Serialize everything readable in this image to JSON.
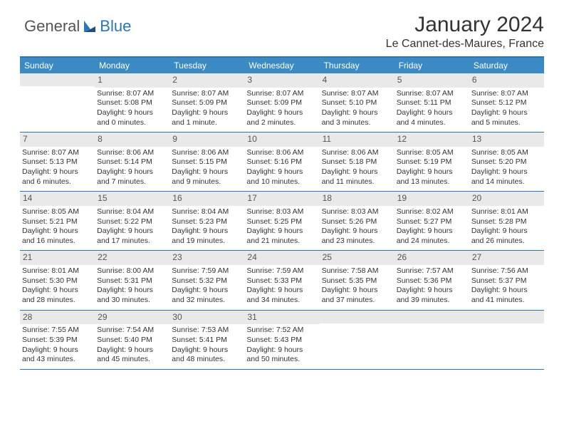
{
  "brand": {
    "part1": "General",
    "part2": "Blue"
  },
  "title": "January 2024",
  "location": "Le Cannet-des-Maures, France",
  "colors": {
    "header_bg": "#3b8ac4",
    "header_text": "#ffffff",
    "rule": "#2e75b6",
    "daynum_bg": "#e9e9e9",
    "body_text": "#333333"
  },
  "weekdays": [
    "Sunday",
    "Monday",
    "Tuesday",
    "Wednesday",
    "Thursday",
    "Friday",
    "Saturday"
  ],
  "weeks": [
    [
      {
        "n": "",
        "sr": "",
        "ss": "",
        "dl": ""
      },
      {
        "n": "1",
        "sr": "Sunrise: 8:07 AM",
        "ss": "Sunset: 5:08 PM",
        "dl": "Daylight: 9 hours and 0 minutes."
      },
      {
        "n": "2",
        "sr": "Sunrise: 8:07 AM",
        "ss": "Sunset: 5:09 PM",
        "dl": "Daylight: 9 hours and 1 minute."
      },
      {
        "n": "3",
        "sr": "Sunrise: 8:07 AM",
        "ss": "Sunset: 5:09 PM",
        "dl": "Daylight: 9 hours and 2 minutes."
      },
      {
        "n": "4",
        "sr": "Sunrise: 8:07 AM",
        "ss": "Sunset: 5:10 PM",
        "dl": "Daylight: 9 hours and 3 minutes."
      },
      {
        "n": "5",
        "sr": "Sunrise: 8:07 AM",
        "ss": "Sunset: 5:11 PM",
        "dl": "Daylight: 9 hours and 4 minutes."
      },
      {
        "n": "6",
        "sr": "Sunrise: 8:07 AM",
        "ss": "Sunset: 5:12 PM",
        "dl": "Daylight: 9 hours and 5 minutes."
      }
    ],
    [
      {
        "n": "7",
        "sr": "Sunrise: 8:07 AM",
        "ss": "Sunset: 5:13 PM",
        "dl": "Daylight: 9 hours and 6 minutes."
      },
      {
        "n": "8",
        "sr": "Sunrise: 8:06 AM",
        "ss": "Sunset: 5:14 PM",
        "dl": "Daylight: 9 hours and 7 minutes."
      },
      {
        "n": "9",
        "sr": "Sunrise: 8:06 AM",
        "ss": "Sunset: 5:15 PM",
        "dl": "Daylight: 9 hours and 9 minutes."
      },
      {
        "n": "10",
        "sr": "Sunrise: 8:06 AM",
        "ss": "Sunset: 5:16 PM",
        "dl": "Daylight: 9 hours and 10 minutes."
      },
      {
        "n": "11",
        "sr": "Sunrise: 8:06 AM",
        "ss": "Sunset: 5:18 PM",
        "dl": "Daylight: 9 hours and 11 minutes."
      },
      {
        "n": "12",
        "sr": "Sunrise: 8:05 AM",
        "ss": "Sunset: 5:19 PM",
        "dl": "Daylight: 9 hours and 13 minutes."
      },
      {
        "n": "13",
        "sr": "Sunrise: 8:05 AM",
        "ss": "Sunset: 5:20 PM",
        "dl": "Daylight: 9 hours and 14 minutes."
      }
    ],
    [
      {
        "n": "14",
        "sr": "Sunrise: 8:05 AM",
        "ss": "Sunset: 5:21 PM",
        "dl": "Daylight: 9 hours and 16 minutes."
      },
      {
        "n": "15",
        "sr": "Sunrise: 8:04 AM",
        "ss": "Sunset: 5:22 PM",
        "dl": "Daylight: 9 hours and 17 minutes."
      },
      {
        "n": "16",
        "sr": "Sunrise: 8:04 AM",
        "ss": "Sunset: 5:23 PM",
        "dl": "Daylight: 9 hours and 19 minutes."
      },
      {
        "n": "17",
        "sr": "Sunrise: 8:03 AM",
        "ss": "Sunset: 5:25 PM",
        "dl": "Daylight: 9 hours and 21 minutes."
      },
      {
        "n": "18",
        "sr": "Sunrise: 8:03 AM",
        "ss": "Sunset: 5:26 PM",
        "dl": "Daylight: 9 hours and 23 minutes."
      },
      {
        "n": "19",
        "sr": "Sunrise: 8:02 AM",
        "ss": "Sunset: 5:27 PM",
        "dl": "Daylight: 9 hours and 24 minutes."
      },
      {
        "n": "20",
        "sr": "Sunrise: 8:01 AM",
        "ss": "Sunset: 5:28 PM",
        "dl": "Daylight: 9 hours and 26 minutes."
      }
    ],
    [
      {
        "n": "21",
        "sr": "Sunrise: 8:01 AM",
        "ss": "Sunset: 5:30 PM",
        "dl": "Daylight: 9 hours and 28 minutes."
      },
      {
        "n": "22",
        "sr": "Sunrise: 8:00 AM",
        "ss": "Sunset: 5:31 PM",
        "dl": "Daylight: 9 hours and 30 minutes."
      },
      {
        "n": "23",
        "sr": "Sunrise: 7:59 AM",
        "ss": "Sunset: 5:32 PM",
        "dl": "Daylight: 9 hours and 32 minutes."
      },
      {
        "n": "24",
        "sr": "Sunrise: 7:59 AM",
        "ss": "Sunset: 5:33 PM",
        "dl": "Daylight: 9 hours and 34 minutes."
      },
      {
        "n": "25",
        "sr": "Sunrise: 7:58 AM",
        "ss": "Sunset: 5:35 PM",
        "dl": "Daylight: 9 hours and 37 minutes."
      },
      {
        "n": "26",
        "sr": "Sunrise: 7:57 AM",
        "ss": "Sunset: 5:36 PM",
        "dl": "Daylight: 9 hours and 39 minutes."
      },
      {
        "n": "27",
        "sr": "Sunrise: 7:56 AM",
        "ss": "Sunset: 5:37 PM",
        "dl": "Daylight: 9 hours and 41 minutes."
      }
    ],
    [
      {
        "n": "28",
        "sr": "Sunrise: 7:55 AM",
        "ss": "Sunset: 5:39 PM",
        "dl": "Daylight: 9 hours and 43 minutes."
      },
      {
        "n": "29",
        "sr": "Sunrise: 7:54 AM",
        "ss": "Sunset: 5:40 PM",
        "dl": "Daylight: 9 hours and 45 minutes."
      },
      {
        "n": "30",
        "sr": "Sunrise: 7:53 AM",
        "ss": "Sunset: 5:41 PM",
        "dl": "Daylight: 9 hours and 48 minutes."
      },
      {
        "n": "31",
        "sr": "Sunrise: 7:52 AM",
        "ss": "Sunset: 5:43 PM",
        "dl": "Daylight: 9 hours and 50 minutes."
      },
      {
        "n": "",
        "sr": "",
        "ss": "",
        "dl": ""
      },
      {
        "n": "",
        "sr": "",
        "ss": "",
        "dl": ""
      },
      {
        "n": "",
        "sr": "",
        "ss": "",
        "dl": ""
      }
    ]
  ]
}
